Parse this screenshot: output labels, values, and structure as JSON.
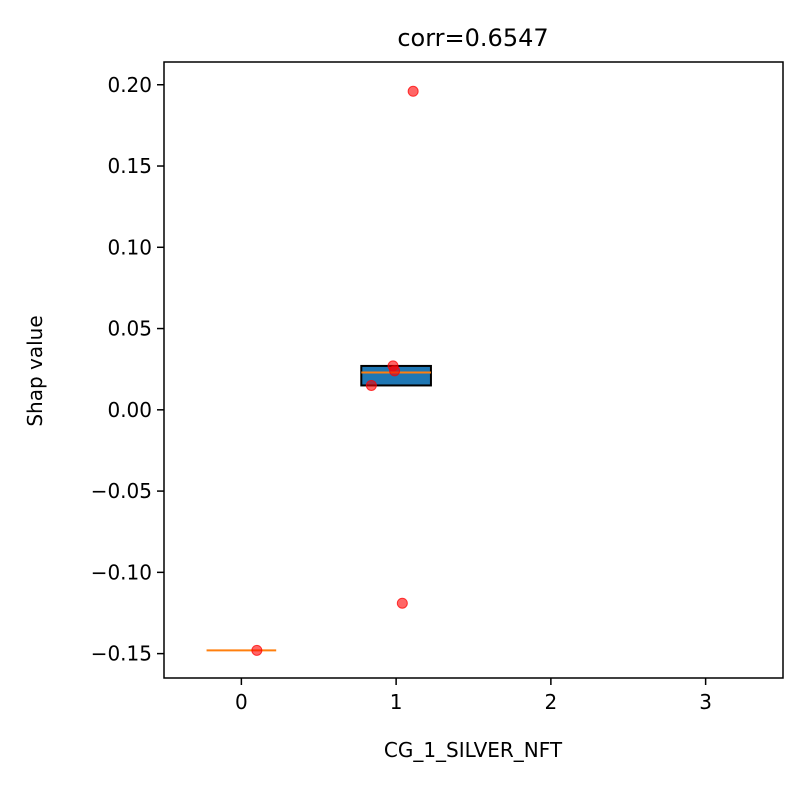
{
  "chart_data": {
    "type": "box",
    "title": "corr=0.6547",
    "xlabel": "CG_1_SILVER_NFT",
    "ylabel": "Shap value",
    "xlim": [
      -0.5,
      3.5
    ],
    "ylim": [
      -0.165,
      0.214
    ],
    "xticks": [
      0,
      1,
      2,
      3
    ],
    "yticks": [
      -0.15,
      -0.1,
      -0.05,
      0.0,
      0.05,
      0.1,
      0.15,
      0.2
    ],
    "ytick_labels": [
      "−0.15",
      "−0.10",
      "−0.05",
      "0.00",
      "0.05",
      "0.10",
      "0.15",
      "0.20"
    ],
    "grid": false,
    "boxes": [
      {
        "position": 0,
        "q1": -0.148,
        "median": -0.148,
        "q3": -0.148,
        "whisker_low": -0.148,
        "whisker_high": -0.148
      },
      {
        "position": 1,
        "q1": 0.015,
        "median": 0.023,
        "q3": 0.027,
        "whisker_low": 0.015,
        "whisker_high": 0.027
      }
    ],
    "points": [
      {
        "x": 0.1,
        "y": -0.148
      },
      {
        "x": 0.84,
        "y": 0.015
      },
      {
        "x": 0.98,
        "y": 0.027
      },
      {
        "x": 0.99,
        "y": 0.024
      },
      {
        "x": 1.04,
        "y": -0.119
      },
      {
        "x": 1.11,
        "y": 0.196
      }
    ],
    "colors": {
      "box_fill": "#1f77b4",
      "median": "#ff7f0e",
      "point": "#ff0000"
    }
  }
}
